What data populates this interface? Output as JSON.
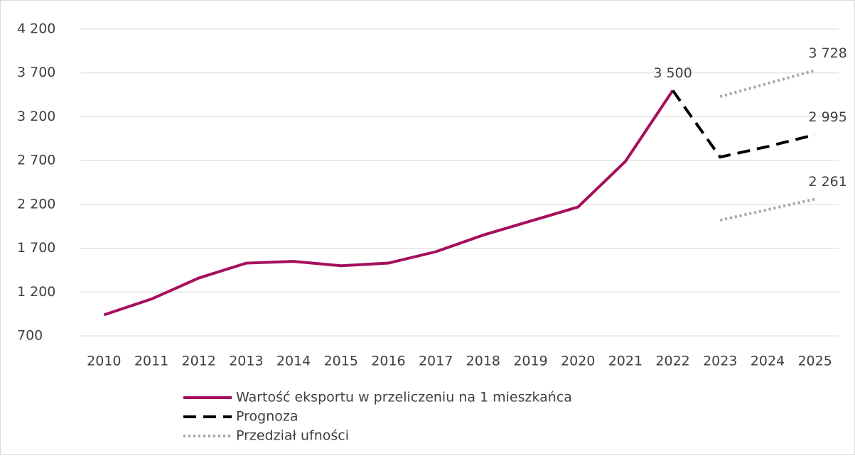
{
  "chart_data": {
    "type": "line",
    "categories": [
      "2010",
      "2011",
      "2012",
      "2013",
      "2014",
      "2015",
      "2016",
      "2017",
      "2018",
      "2019",
      "2020",
      "2021",
      "2022",
      "2023",
      "2024",
      "2025"
    ],
    "series": [
      {
        "name": "Wartość eksportu w przeliczeniu na 1 mieszkańca",
        "color": "#a50f5c",
        "style": "solid",
        "values": [
          940,
          1120,
          1360,
          1530,
          1550,
          1500,
          1530,
          1660,
          1850,
          2010,
          2170,
          2690,
          3500,
          null,
          null,
          null
        ],
        "value_labels": [
          null,
          null,
          null,
          null,
          null,
          null,
          null,
          null,
          null,
          null,
          null,
          null,
          "3 500",
          null,
          null,
          null
        ]
      },
      {
        "name": "Prognoza",
        "color": "#000000",
        "style": "dashed",
        "values": [
          null,
          null,
          null,
          null,
          null,
          null,
          null,
          null,
          null,
          null,
          null,
          null,
          3500,
          2740,
          2860,
          2995
        ],
        "value_labels": [
          null,
          null,
          null,
          null,
          null,
          null,
          null,
          null,
          null,
          null,
          null,
          null,
          null,
          null,
          null,
          "2 995"
        ]
      },
      {
        "name": "Przedział ufności",
        "color": "#a6a6a6",
        "style": "dotted",
        "values": [
          null,
          null,
          null,
          null,
          null,
          null,
          null,
          null,
          null,
          null,
          null,
          null,
          null,
          3430,
          3580,
          3728
        ],
        "value_labels": [
          null,
          null,
          null,
          null,
          null,
          null,
          null,
          null,
          null,
          null,
          null,
          null,
          null,
          null,
          null,
          "3 728"
        ]
      },
      {
        "color": "#a6a6a6",
        "style": "dotted",
        "values": [
          null,
          null,
          null,
          null,
          null,
          null,
          null,
          null,
          null,
          null,
          null,
          null,
          null,
          2020,
          2140,
          2261
        ],
        "value_labels": [
          null,
          null,
          null,
          null,
          null,
          null,
          null,
          null,
          null,
          null,
          null,
          null,
          null,
          null,
          null,
          "2 261"
        ]
      }
    ],
    "ylim": [
      700,
      4200
    ],
    "yticks": [
      700,
      {
        "value": 1200,
        "label": "1 200"
      },
      {
        "value": 1700,
        "label": "1 700"
      },
      {
        "value": 2200,
        "label": "2 200"
      },
      {
        "value": 2700,
        "label": "2 700"
      },
      {
        "value": 3200,
        "label": "3 200"
      },
      {
        "value": 3700,
        "label": "3 700"
      },
      {
        "value": 4200,
        "label": "4 200"
      }
    ],
    "grid": true,
    "legend": "bottom"
  }
}
